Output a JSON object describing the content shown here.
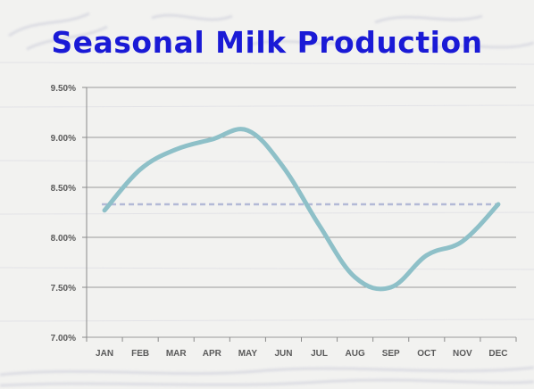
{
  "slide": {
    "title": "Seasonal Milk Production"
  },
  "chart_data": {
    "type": "line",
    "title": "Seasonal Milk Production",
    "xlabel": "",
    "ylabel": "",
    "categories": [
      "JAN",
      "FEB",
      "MAR",
      "APR",
      "MAY",
      "JUN",
      "JUL",
      "AUG",
      "SEP",
      "OCT",
      "NOV",
      "DEC"
    ],
    "series": [
      {
        "values": [
          8.27,
          8.68,
          8.88,
          8.98,
          9.07,
          8.7,
          8.12,
          7.6,
          7.5,
          7.82,
          7.96,
          8.33
        ],
        "color": "#8ec0c8"
      }
    ],
    "reference_line": {
      "value": 8.33,
      "style": "dashed",
      "color": "#b3b9d6"
    },
    "ylim": [
      7.0,
      9.5
    ],
    "yticks": [
      "7.00%",
      "7.50%",
      "8.00%",
      "8.50%",
      "9.00%",
      "9.50%"
    ],
    "grid": true,
    "legend": "none"
  }
}
